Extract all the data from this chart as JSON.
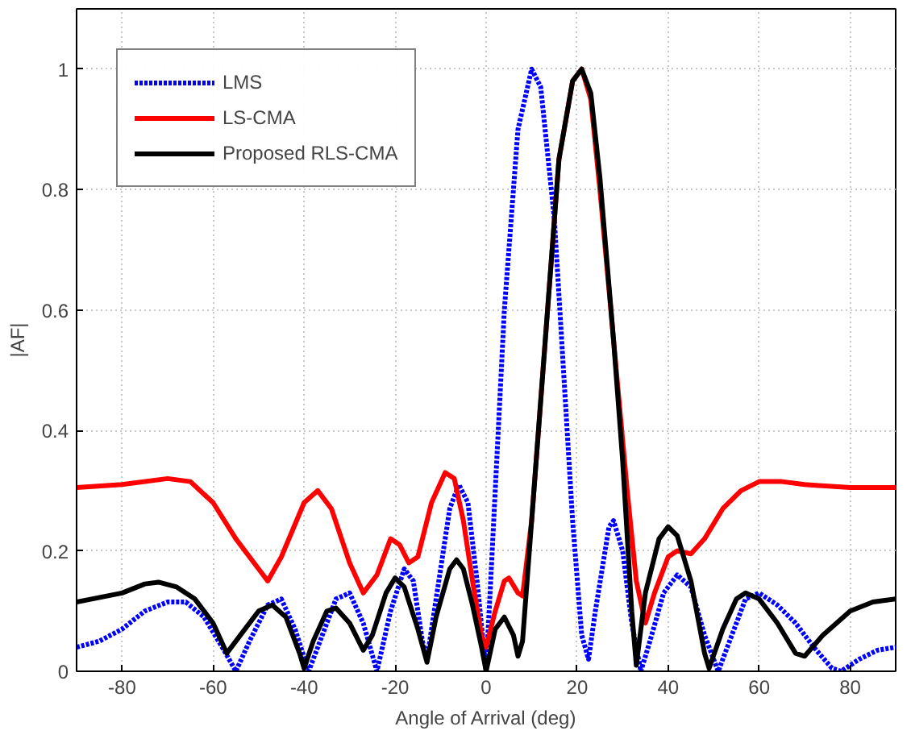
{
  "chart_data": {
    "type": "line",
    "xlabel": "Angle of Arrival (deg)",
    "ylabel": "|AF|",
    "xlim": [
      -90,
      90
    ],
    "ylim": [
      0,
      1.1
    ],
    "xticks": [
      -80,
      -60,
      -40,
      -20,
      0,
      20,
      40,
      60,
      80
    ],
    "yticks": [
      0,
      0.2,
      0.4,
      0.6,
      0.8,
      1
    ],
    "grid": true,
    "legend": "top left",
    "series": [
      {
        "name": "LMS",
        "color": "#0000ff",
        "line_style": "dotted",
        "x": [
          -90,
          -85,
          -80,
          -75,
          -70,
          -66,
          -62,
          -58,
          -55,
          -52,
          -48,
          -45,
          -42,
          -39,
          -36,
          -33,
          -30,
          -27,
          -24,
          -21,
          -18,
          -16,
          -14,
          -13,
          -11,
          -8,
          -6,
          -4,
          -2,
          0,
          2,
          4,
          7,
          10,
          12,
          15,
          17,
          19,
          21,
          22.5,
          24,
          27,
          28,
          30,
          32,
          34,
          36,
          39,
          42,
          45,
          48,
          51,
          54,
          57,
          60,
          64,
          68,
          72,
          76,
          78,
          82,
          86,
          90
        ],
        "values": [
          0.04,
          0.05,
          0.07,
          0.1,
          0.115,
          0.115,
          0.09,
          0.04,
          0.0,
          0.05,
          0.11,
          0.12,
          0.07,
          0.0,
          0.06,
          0.12,
          0.13,
          0.08,
          0.0,
          0.1,
          0.17,
          0.15,
          0.05,
          0.02,
          0.12,
          0.27,
          0.31,
          0.28,
          0.15,
          0.0,
          0.3,
          0.6,
          0.9,
          1.0,
          0.97,
          0.75,
          0.5,
          0.25,
          0.06,
          0.02,
          0.1,
          0.24,
          0.25,
          0.2,
          0.08,
          0.0,
          0.05,
          0.13,
          0.16,
          0.14,
          0.06,
          0.0,
          0.06,
          0.12,
          0.13,
          0.11,
          0.08,
          0.04,
          0.005,
          0.0,
          0.02,
          0.035,
          0.04
        ]
      },
      {
        "name": "LS-CMA",
        "color": "#ff0000",
        "line_style": "solid",
        "x": [
          -90,
          -80,
          -70,
          -65,
          -60,
          -55,
          -50,
          -48,
          -45,
          -40,
          -37,
          -34,
          -30,
          -27,
          -24,
          -21,
          -19,
          -17,
          -15,
          -12,
          -9,
          -7,
          -5,
          -3,
          -1,
          0,
          2,
          4,
          5,
          7,
          8,
          10,
          13,
          16,
          19,
          21,
          23,
          25,
          28,
          31,
          33,
          35,
          37,
          40,
          42,
          45,
          48,
          52,
          56,
          60,
          65,
          70,
          80,
          90
        ],
        "values": [
          0.305,
          0.31,
          0.32,
          0.315,
          0.28,
          0.22,
          0.17,
          0.15,
          0.19,
          0.28,
          0.3,
          0.27,
          0.18,
          0.13,
          0.16,
          0.22,
          0.21,
          0.18,
          0.19,
          0.28,
          0.33,
          0.32,
          0.25,
          0.15,
          0.06,
          0.04,
          0.1,
          0.15,
          0.155,
          0.13,
          0.125,
          0.25,
          0.55,
          0.85,
          0.98,
          1.0,
          0.95,
          0.8,
          0.55,
          0.3,
          0.15,
          0.08,
          0.13,
          0.19,
          0.2,
          0.195,
          0.22,
          0.27,
          0.3,
          0.315,
          0.315,
          0.31,
          0.305,
          0.305
        ]
      },
      {
        "name": "Proposed RLS-CMA",
        "color": "#000000",
        "line_style": "solid",
        "x": [
          -90,
          -80,
          -75,
          -72,
          -68,
          -64,
          -60,
          -57,
          -54,
          -50,
          -47,
          -44,
          -41,
          -40,
          -38,
          -35,
          -33,
          -30,
          -27,
          -25,
          -22,
          -20,
          -18,
          -15,
          -13,
          -11,
          -8,
          -6.5,
          -5,
          -3,
          -1,
          0,
          2,
          4,
          6,
          7,
          8,
          10,
          13,
          16,
          19,
          21,
          23,
          25,
          28,
          30,
          32,
          33,
          35,
          38,
          40,
          42,
          45,
          48,
          49,
          52,
          55,
          57,
          60,
          64,
          68,
          70,
          74,
          80,
          85,
          90
        ],
        "values": [
          0.115,
          0.13,
          0.145,
          0.148,
          0.14,
          0.12,
          0.08,
          0.03,
          0.06,
          0.1,
          0.11,
          0.09,
          0.03,
          0.005,
          0.05,
          0.1,
          0.105,
          0.08,
          0.035,
          0.06,
          0.13,
          0.155,
          0.14,
          0.07,
          0.015,
          0.09,
          0.17,
          0.185,
          0.17,
          0.11,
          0.04,
          0.0,
          0.07,
          0.09,
          0.06,
          0.025,
          0.05,
          0.25,
          0.55,
          0.85,
          0.98,
          1.0,
          0.96,
          0.82,
          0.55,
          0.35,
          0.1,
          0.01,
          0.13,
          0.22,
          0.24,
          0.225,
          0.15,
          0.03,
          0.005,
          0.07,
          0.12,
          0.13,
          0.12,
          0.08,
          0.03,
          0.025,
          0.06,
          0.1,
          0.115,
          0.12
        ]
      }
    ]
  }
}
